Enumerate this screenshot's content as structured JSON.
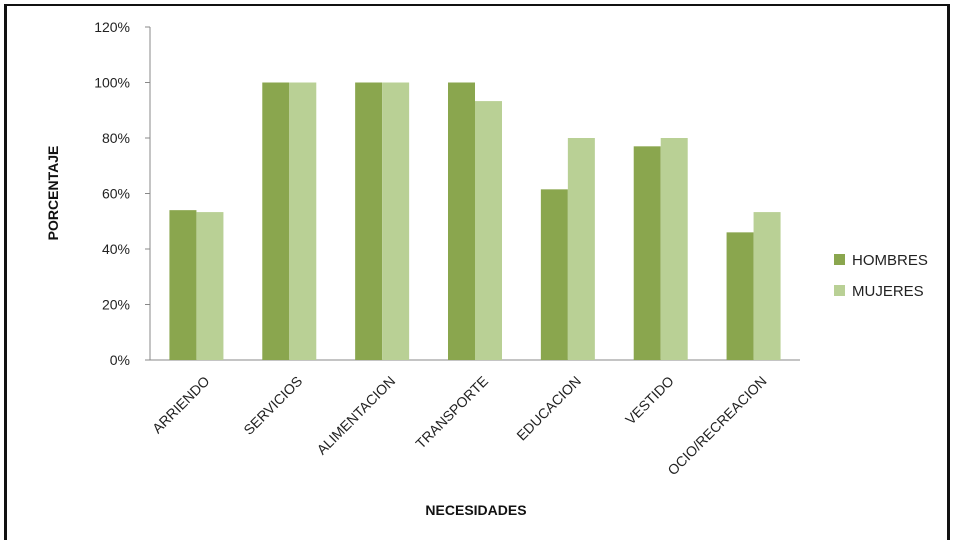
{
  "chart_data": {
    "type": "bar",
    "categories": [
      "ARRIENDO",
      "SERVICIOS",
      "ALIMENTACION",
      "TRANSPORTE",
      "EDUCACION",
      "VESTIDO",
      "OCIO/RECREACION"
    ],
    "series": [
      {
        "name": "HOMBRES",
        "values": [
          54,
          100,
          100,
          100,
          61.5,
          77,
          46
        ],
        "color": "#8aa64e"
      },
      {
        "name": "MUJERES",
        "values": [
          53.3,
          100,
          100,
          93.3,
          80,
          80,
          53.3
        ],
        "color": "#b9d095"
      }
    ],
    "title": "",
    "xlabel": "NECESIDADES",
    "ylabel": "PORCENTAJE",
    "ylim": [
      0,
      120
    ],
    "yticks": [
      "0%",
      "20%",
      "40%",
      "60%",
      "80%",
      "100%",
      "120%"
    ],
    "grid": false,
    "legend_position": "right"
  }
}
